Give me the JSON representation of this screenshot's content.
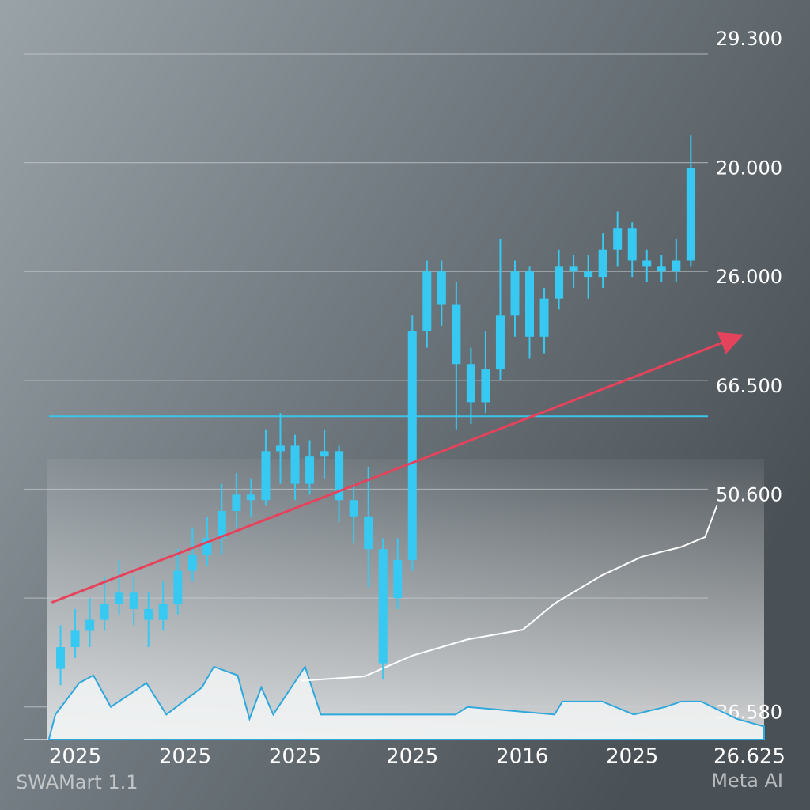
{
  "chart_data": {
    "type": "candlestick",
    "color": "#38c9f2",
    "x": [
      1,
      2,
      3,
      4,
      5,
      6,
      7,
      8,
      9,
      10,
      11,
      12,
      13,
      14,
      15,
      16,
      17,
      18,
      19,
      20,
      21,
      22,
      23,
      24,
      25,
      26,
      27,
      28,
      29,
      30,
      31,
      32,
      33,
      34,
      35,
      36,
      37,
      38,
      39,
      40,
      41,
      42,
      43,
      44
    ],
    "open": [
      1.35,
      1.55,
      1.7,
      1.8,
      1.95,
      2.05,
      1.9,
      1.8,
      1.95,
      2.25,
      2.4,
      2.55,
      2.8,
      2.95,
      2.9,
      3.35,
      3.4,
      3.05,
      3.3,
      3.35,
      2.9,
      2.75,
      2.45,
      2.0,
      2.35,
      4.45,
      5.0,
      4.7,
      4.15,
      3.8,
      4.1,
      4.6,
      5.0,
      4.4,
      4.75,
      5.05,
      5.0,
      4.95,
      5.2,
      5.4,
      5.1,
      5.05,
      5.0,
      5.1
    ],
    "high": [
      1.75,
      1.9,
      2.0,
      2.2,
      2.35,
      2.2,
      2.05,
      2.15,
      2.45,
      2.65,
      2.75,
      3.05,
      3.15,
      3.1,
      3.55,
      3.7,
      3.5,
      3.45,
      3.55,
      3.4,
      3.05,
      3.2,
      2.55,
      2.55,
      4.6,
      5.1,
      5.1,
      4.9,
      4.3,
      4.45,
      5.3,
      5.1,
      5.05,
      4.85,
      5.2,
      5.15,
      5.15,
      5.35,
      5.55,
      5.45,
      5.2,
      5.15,
      5.3,
      6.25
    ],
    "low": [
      1.2,
      1.45,
      1.55,
      1.7,
      1.85,
      1.75,
      1.55,
      1.7,
      1.85,
      2.15,
      2.3,
      2.4,
      2.65,
      2.75,
      2.85,
      3.05,
      2.9,
      2.95,
      3.1,
      2.7,
      2.5,
      2.1,
      1.25,
      1.9,
      2.25,
      4.3,
      4.5,
      3.55,
      3.6,
      3.7,
      4.0,
      4.4,
      4.2,
      4.25,
      4.65,
      4.85,
      4.75,
      4.85,
      5.05,
      4.95,
      4.9,
      4.9,
      4.9,
      5.05
    ],
    "close": [
      1.55,
      1.7,
      1.8,
      1.95,
      2.05,
      1.9,
      1.8,
      1.95,
      2.25,
      2.4,
      2.55,
      2.8,
      2.95,
      2.9,
      3.35,
      3.4,
      3.05,
      3.3,
      3.35,
      2.9,
      2.75,
      2.45,
      1.4,
      2.35,
      4.45,
      5.0,
      4.7,
      4.15,
      3.8,
      4.1,
      4.6,
      5.0,
      4.4,
      4.75,
      5.05,
      5.0,
      4.95,
      5.2,
      5.4,
      5.1,
      5.05,
      5.0,
      5.1,
      5.95
    ],
    "xlim": [
      0,
      49
    ],
    "xticks": [
      {
        "value": 2,
        "label": "2025"
      },
      {
        "value": 9.5,
        "label": "2025"
      },
      {
        "value": 17,
        "label": "2025"
      },
      {
        "value": 25,
        "label": "2025"
      },
      {
        "value": 32.5,
        "label": "2016"
      },
      {
        "value": 40,
        "label": "2025"
      },
      {
        "value": 48,
        "label": "26.625"
      }
    ],
    "ylim": [
      0.7,
      7
    ],
    "yticks": [
      {
        "value": 7,
        "label": "29.300"
      },
      {
        "value": 6,
        "label": "20.000"
      },
      {
        "value": 5,
        "label": "26.000"
      },
      {
        "value": 4,
        "label": "66.500"
      },
      {
        "value": 3,
        "label": "50.600"
      },
      {
        "value": 2,
        "label": null
      },
      {
        "value": 1,
        "label": "36.580"
      }
    ],
    "grid": true,
    "hline": {
      "value": 3.67,
      "color": "#3cc4e8"
    },
    "trend": {
      "x": [
        0.4,
        47
      ],
      "values": [
        1.96,
        4.39
      ],
      "color": "#e5435c"
    },
    "white_line": {
      "x": [
        17.41,
        21.73,
        24.97,
        28.76,
        32.54,
        34.7,
        37.95,
        40.65,
        43.35,
        44.97,
        45.78
      ],
      "values": [
        1.24,
        1.28,
        1.47,
        1.62,
        1.71,
        1.95,
        2.21,
        2.38,
        2.47,
        2.56,
        2.85
      ],
      "color": "#ffffff"
    },
    "volume": {
      "x": [
        0.22,
        0.65,
        2.27,
        3.24,
        4.43,
        6.86,
        8.22,
        10.65,
        11.46,
        13.08,
        13.89,
        14.7,
        15.51,
        17.68,
        18.76,
        22.81,
        27.95,
        28.76,
        34.7,
        35.24,
        37.95,
        40.11,
        42.27,
        43.35,
        44.7,
        47.14,
        49
      ],
      "values": [
        0.71,
        0.93,
        1.22,
        1.29,
        1.0,
        1.22,
        0.93,
        1.18,
        1.37,
        1.29,
        0.89,
        1.18,
        0.93,
        1.37,
        0.93,
        0.93,
        0.93,
        1.0,
        0.93,
        1.05,
        1.05,
        0.93,
        1.0,
        1.05,
        1.05,
        0.89,
        0.82
      ],
      "color": "#2fa8dc"
    }
  },
  "footer": {
    "left": "SWAMart 1.1",
    "right": "Meta AI"
  }
}
